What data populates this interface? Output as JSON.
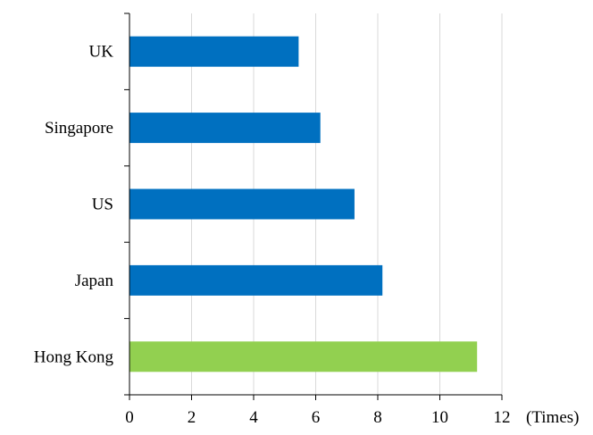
{
  "chart_data": {
    "type": "bar",
    "orientation": "horizontal",
    "categories": [
      "UK",
      "Singapore",
      "US",
      "Japan",
      "Hong Kong"
    ],
    "values": [
      5.45,
      6.15,
      7.25,
      8.15,
      11.2
    ],
    "colors": [
      "#0070c0",
      "#0070c0",
      "#0070c0",
      "#0070c0",
      "#92d050"
    ],
    "xlim": [
      0,
      12
    ],
    "x_ticks": [
      "0",
      "2",
      "4",
      "6",
      "8",
      "10",
      "12"
    ],
    "xlabel": "(Times)",
    "grid": true,
    "legend": "none"
  }
}
